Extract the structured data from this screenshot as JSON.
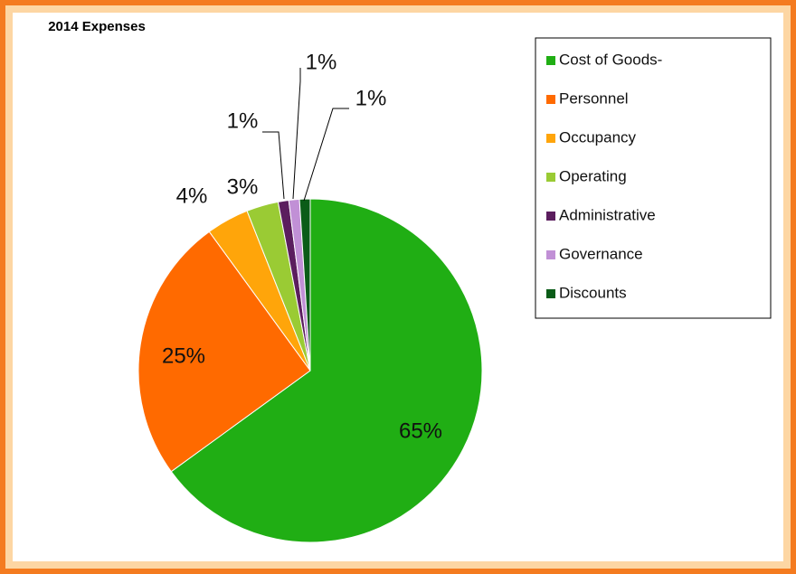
{
  "chart_data": {
    "type": "pie",
    "title": "2014 Expenses",
    "categories": [
      "Cost of Goods-",
      "Personnel",
      "Occupancy",
      "Operating",
      "Administrative",
      "Governance",
      "Discounts"
    ],
    "values": [
      65,
      25,
      4,
      3,
      1,
      1,
      1
    ],
    "value_labels": [
      "65%",
      "25%",
      "4%",
      "3%",
      "1%",
      "1%",
      "1%"
    ],
    "colors": [
      "#20ae14",
      "#ff6a00",
      "#ffa50a",
      "#9acb34",
      "#5b1e5e",
      "#c190d6",
      "#0b5c18"
    ],
    "legend": "right"
  }
}
